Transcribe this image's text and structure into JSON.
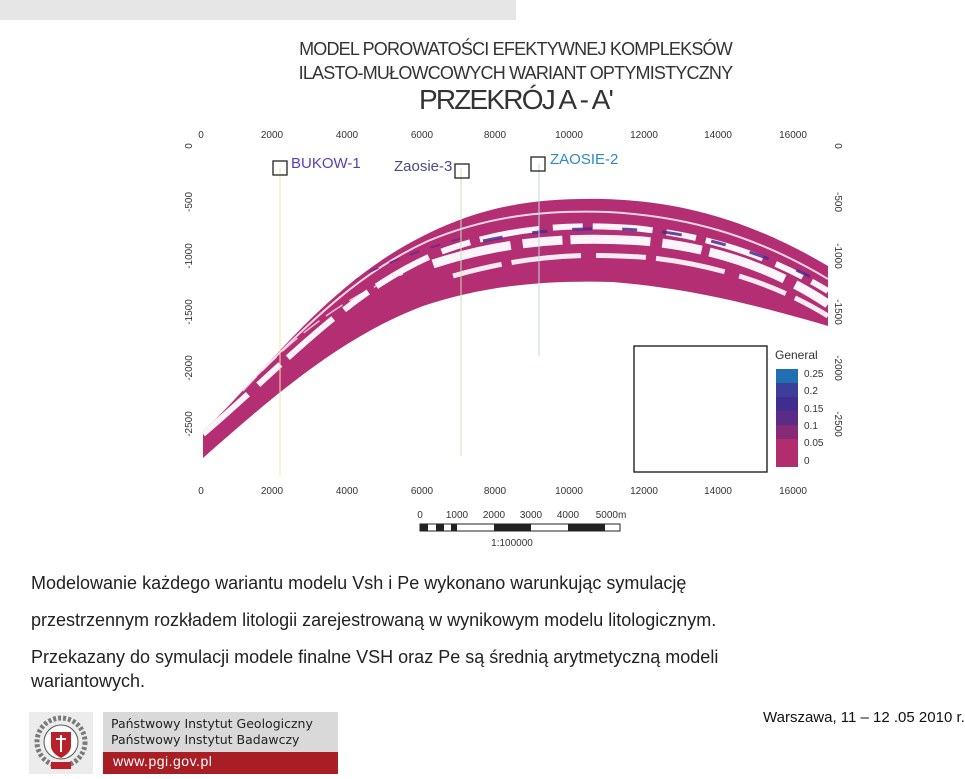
{
  "figure": {
    "title_line1": "MODEL POROWATOŚCI EFEKTYWNEJ KOMPLEKSÓW",
    "title_line2": "ILASTO-MUŁOWCOWYCH WARIANT OPTYMISTYCZNY",
    "title_line3": "PRZEKRÓJ A - A'",
    "x_ticks": [
      "0",
      "2000",
      "4000",
      "6000",
      "8000",
      "10000",
      "12000",
      "14000",
      "16000"
    ],
    "y_ticks_left": [
      "0",
      "-500",
      "-1000",
      "-1500",
      "-2000",
      "-2500"
    ],
    "y_ticks_right": [
      "0",
      "-500",
      "-1000",
      "-1500",
      "-2000",
      "-2500"
    ],
    "wells": [
      {
        "name": "BUKOW-1",
        "color": "#5b3fb0"
      },
      {
        "name": "Zaosie-3",
        "color": "#4a4a8a"
      },
      {
        "name": "ZAOSIE-2",
        "color": "#2f88c0"
      }
    ],
    "legend": {
      "title": "General",
      "labels": [
        "0.25",
        "0.2",
        "0.15",
        "0.1",
        "0.05",
        "0"
      ],
      "colors": [
        "#1f6fb2",
        "#3b3f9a",
        "#3f2e8e",
        "#5a2c86",
        "#872a78",
        "#b12d6e"
      ]
    },
    "scale_bar": {
      "labels": [
        "0",
        "1000",
        "2000",
        "3000",
        "4000",
        "5000m"
      ],
      "ratio": "1:100000"
    }
  },
  "body_text": {
    "line1": "Modelowanie każdego wariantu modelu Vsh i Pe wykonano warunkując symulację",
    "line2": "przestrzennym rozkładem litologii zarejestrowaną  w wynikowym modelu litologicznym.",
    "line3": "Przekazany do symulacji modele finalne VSH oraz  Pe są średnią arytmetyczną modeli",
    "line4": "wariantowych."
  },
  "footer": {
    "institute_line1": "Państwowy Instytut Geologiczny",
    "institute_line2": "Państwowy Instytut Badawczy",
    "website": "www.pgi.gov.pl",
    "place_date": "Warszawa, 11 – 12 .05  2010 r."
  }
}
